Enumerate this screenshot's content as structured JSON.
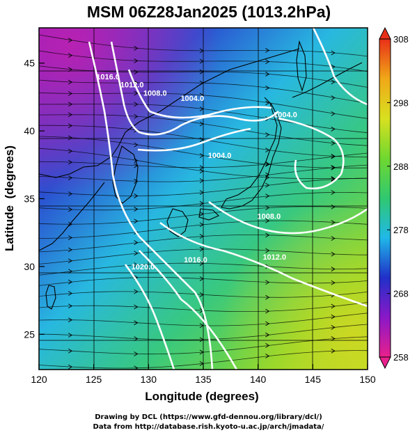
{
  "chart_data": {
    "type": "heatmap",
    "title": "MSM 06Z28Jan2025 (1013.2hPa)",
    "xlabel": "Longitude (degrees)",
    "ylabel": "Latitude  (degrees)",
    "xlim": [
      120,
      150
    ],
    "ylim": [
      22.4,
      47.6
    ],
    "xticks": [
      120,
      125,
      130,
      135,
      140,
      145,
      150
    ],
    "yticks": [
      25,
      30,
      35,
      40,
      45
    ],
    "grid": true,
    "colorbar": {
      "range": [
        258,
        308
      ],
      "ticks": [
        258,
        268,
        278,
        288,
        298,
        308
      ],
      "colors": [
        "#e8208c",
        "#8a18c8",
        "#2030c8",
        "#20b8e8",
        "#30c870",
        "#70d830",
        "#d8e020",
        "#f0a818",
        "#e83018"
      ]
    },
    "contours": [
      {
        "label": "1004.0",
        "lon": 136.5,
        "lat": 38.0
      },
      {
        "label": "1004.0",
        "lon": 134.0,
        "lat": 42.2
      },
      {
        "label": "1008.0",
        "lon": 130.6,
        "lat": 42.6
      },
      {
        "label": "1012.0",
        "lon": 128.5,
        "lat": 43.2
      },
      {
        "label": "1016.0",
        "lon": 126.3,
        "lat": 43.8
      },
      {
        "label": "1004.0",
        "lon": 142.5,
        "lat": 41.0
      },
      {
        "label": "1008.0",
        "lon": 141.0,
        "lat": 33.5
      },
      {
        "label": "1012.0",
        "lon": 141.5,
        "lat": 30.5
      },
      {
        "label": "1016.0",
        "lon": 134.3,
        "lat": 30.3
      },
      {
        "label": "1020.0",
        "lon": 129.5,
        "lat": 29.8
      }
    ]
  },
  "credits": {
    "line1": "Drawing by DCL (https://www.gfd-dennou.org/library/dcl/)",
    "line2": "Data from http://database.rish.kyoto-u.ac.jp/arch/jmadata/"
  }
}
